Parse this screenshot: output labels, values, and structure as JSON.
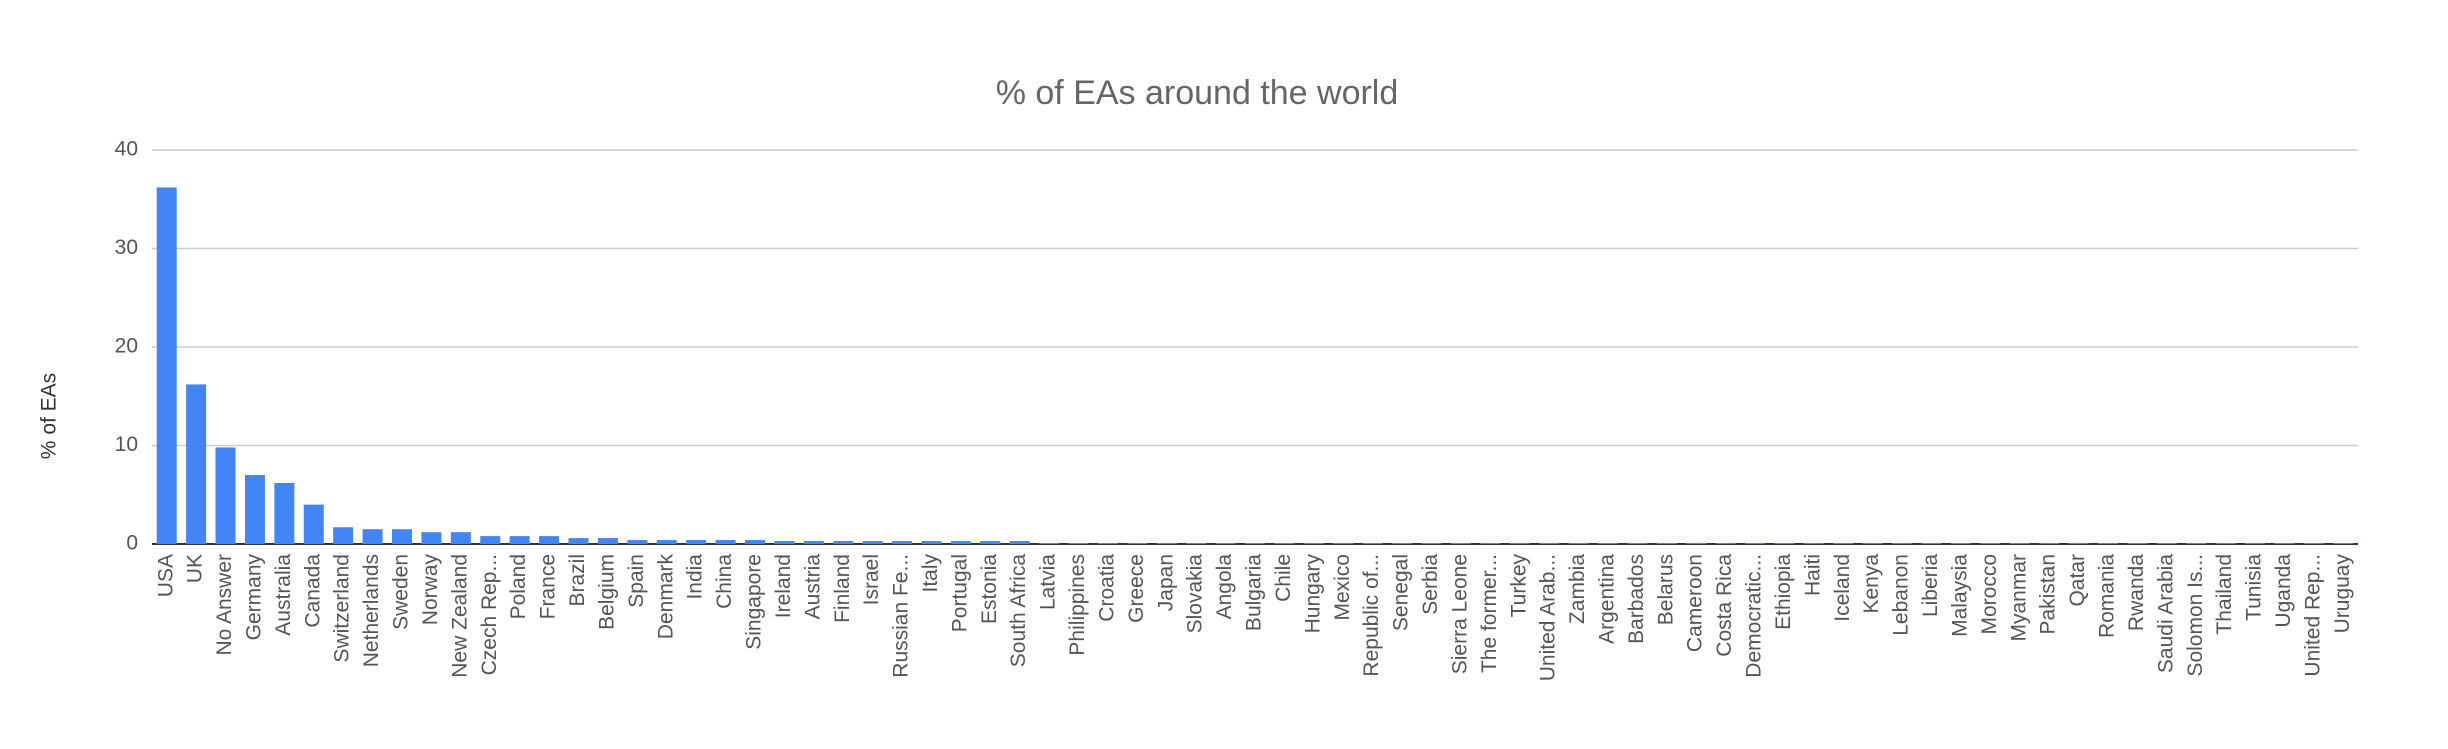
{
  "chart_data": {
    "type": "bar",
    "title": "% of EAs around the world",
    "y_label": "% of EAs",
    "categories": [
      "USA",
      "UK",
      "No Answer",
      "Germany",
      "Australia",
      "Canada",
      "Switzerland",
      "Netherlands",
      "Sweden",
      "Norway",
      "New Zealand",
      "Czech Rep...",
      "Poland",
      "France",
      "Brazil",
      "Belgium",
      "Spain",
      "Denmark",
      "India",
      "China",
      "Singapore",
      "Ireland",
      "Austria",
      "Finland",
      "Israel",
      "Russian Fe...",
      "Italy",
      "Portugal",
      "Estonia",
      "South Africa",
      "Latvia",
      "Philippines",
      "Croatia",
      "Greece",
      "Japan",
      "Slovakia",
      "Angola",
      "Bulgaria",
      "Chile",
      "Hungary",
      "Mexico",
      "Republic of...",
      "Senegal",
      "Serbia",
      "Sierra Leone",
      "The former...",
      "Turkey",
      "United Arab...",
      "Zambia",
      "Argentina",
      "Barbados",
      "Belarus",
      "Cameroon",
      "Costa Rica",
      "Democratic...",
      "Ethiopia",
      "Haiti",
      "Iceland",
      "Kenya",
      "Lebanon",
      "Liberia",
      "Malaysia",
      "Morocco",
      "Myanmar",
      "Pakistan",
      "Qatar",
      "Romania",
      "Rwanda",
      "Saudi Arabia",
      "Solomon Is...",
      "Thailand",
      "Tunisia",
      "Uganda",
      "United Rep...",
      "Uruguay"
    ],
    "values": [
      36.2,
      16.2,
      9.8,
      7.0,
      6.2,
      4.0,
      1.7,
      1.5,
      1.5,
      1.2,
      1.2,
      0.8,
      0.8,
      0.8,
      0.6,
      0.6,
      0.4,
      0.4,
      0.4,
      0.4,
      0.4,
      0.3,
      0.3,
      0.3,
      0.3,
      0.3,
      0.3,
      0.3,
      0.3,
      0.3,
      0.1,
      0.1,
      0.1,
      0.1,
      0.1,
      0.1,
      0.1,
      0.1,
      0.1,
      0.1,
      0.1,
      0.1,
      0.1,
      0.1,
      0.1,
      0.1,
      0.1,
      0.1,
      0.1,
      0.1,
      0.1,
      0.1,
      0.1,
      0.1,
      0.1,
      0.1,
      0.1,
      0.1,
      0.1,
      0.1,
      0.1,
      0.1,
      0.1,
      0.1,
      0.1,
      0.1,
      0.1,
      0.1,
      0.1,
      0.1,
      0.1,
      0.1,
      0.1,
      0.1,
      0.1
    ],
    "color": "#4285f4",
    "ylim": [
      0,
      40
    ],
    "yticks": [
      0,
      10,
      20,
      30,
      40
    ],
    "grid": true
  }
}
